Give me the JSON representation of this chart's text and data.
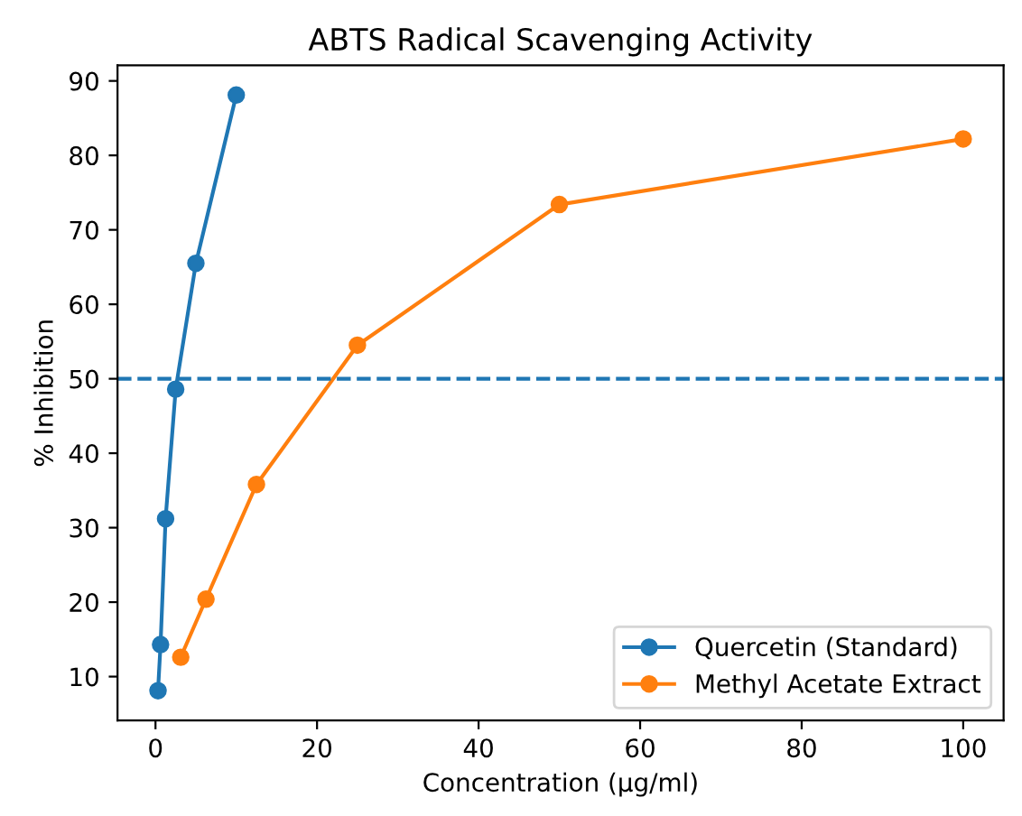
{
  "chart_data": {
    "type": "line",
    "title": "ABTS Radical Scavenging Activity",
    "xlabel": "Concentration (µg/ml)",
    "ylabel": "% Inhibition",
    "series": [
      {
        "name": "Quercetin (Standard)",
        "color": "#1f77b4",
        "x": [
          0.3125,
          0.625,
          1.25,
          2.5,
          5,
          10
        ],
        "values": [
          8.1,
          14.3,
          31.2,
          48.6,
          65.5,
          88.1
        ]
      },
      {
        "name": "Methyl Acetate Extract",
        "color": "#ff7f0e",
        "x": [
          3.125,
          6.25,
          12.5,
          25,
          50,
          100
        ],
        "values": [
          12.6,
          20.4,
          35.8,
          54.5,
          73.4,
          82.2
        ]
      }
    ],
    "xlim": [
      -4.7,
      105
    ],
    "ylim": [
      4.1,
      92.1
    ],
    "xticks": [
      0,
      20,
      40,
      60,
      80,
      100
    ],
    "yticks": [
      10,
      20,
      30,
      40,
      50,
      60,
      70,
      80,
      90
    ],
    "ref_lines": [
      {
        "axis": "y",
        "value": 50,
        "color": "#1f77b4",
        "line_style": "dashed"
      }
    ],
    "marker": "circle",
    "line_style": "solid",
    "grid": false,
    "legend": "bottom right"
  }
}
